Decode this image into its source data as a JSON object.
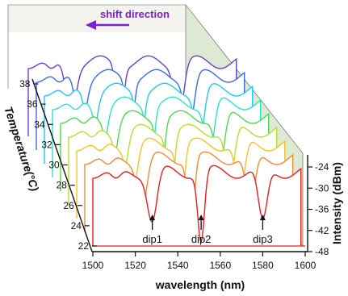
{
  "chart_data": {
    "type": "line",
    "style": "3d-waterfall",
    "x_axis": {
      "label": "wavelength (nm)",
      "range": [
        1500,
        1600
      ],
      "ticks": [
        1500,
        1520,
        1540,
        1560,
        1580,
        1600
      ]
    },
    "y_axis": {
      "label": "Intensity (dBm)",
      "range": [
        -48,
        -24
      ],
      "ticks": [
        -24,
        -30,
        -36,
        -42,
        -48
      ]
    },
    "z_axis": {
      "label": "Temperature(°C)",
      "range": [
        22,
        38
      ],
      "ticks": [
        22,
        24,
        26,
        28,
        30,
        32,
        34,
        36,
        38
      ]
    },
    "annotation": {
      "text": "shift direction",
      "color": "#7b1fd1"
    },
    "dip_labels": [
      {
        "text": "dip1",
        "x": 1528
      },
      {
        "text": "dip2",
        "x": 1551
      },
      {
        "text": "dip3",
        "x": 1580
      }
    ],
    "series": [
      {
        "temperature": 24,
        "color": "#e02020",
        "dips": [
          1528,
          1551,
          1580
        ]
      },
      {
        "temperature": 26,
        "color": "#f08a35",
        "dips": [
          1527,
          1550,
          1578
        ]
      },
      {
        "temperature": 28,
        "color": "#f4c22c",
        "dips": [
          1526,
          1549,
          1577
        ]
      },
      {
        "temperature": 30,
        "color": "#b8dd30",
        "dips": [
          1525,
          1548,
          1576
        ]
      },
      {
        "temperature": 32,
        "color": "#4fd84f",
        "dips": [
          1524,
          1547,
          1575
        ]
      },
      {
        "temperature": 34,
        "color": "#2fe0c8",
        "dips": [
          1523,
          1546,
          1574
        ]
      },
      {
        "temperature": 36,
        "color": "#23c8f0",
        "dips": [
          1522,
          1545,
          1573
        ]
      },
      {
        "temperature": 38,
        "color": "#3a6ae8",
        "dips": [
          1521,
          1544,
          1572
        ]
      },
      {
        "temperature": 40,
        "color": "#6b40c8",
        "dips": [
          1520,
          1543,
          1571
        ]
      }
    ],
    "grid": false
  }
}
